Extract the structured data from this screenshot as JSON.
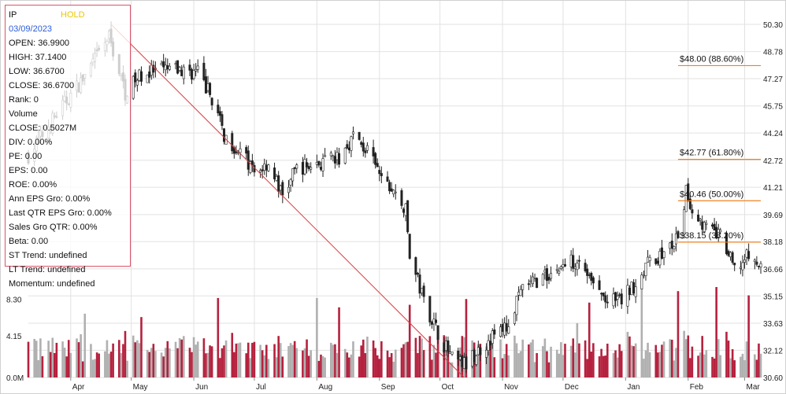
{
  "info_panel": {
    "ticker": "IP",
    "rating": "HOLD",
    "date": "03/09/2023",
    "lines": [
      "OPEN: 36.9900",
      "HIGH: 37.1400",
      "LOW: 36.6700",
      "CLOSE: 36.6700",
      "Rank: 0",
      "Volume",
      "CLOSE: 0.5027M",
      "DIV: 0.00%",
      "PE: 0.00",
      "EPS: 0.00",
      "ROE: 0.00%",
      "Ann EPS Gro: 0.00%",
      "Last QTR EPS Gro: 0.00%",
      "Sales Gro QTR: 0.00%",
      "Beta: 0.00",
      "ST Trend: undefined",
      "LT Trend: undefined",
      "Momentum: undefined"
    ]
  },
  "colors": {
    "up_candle": "#222222",
    "down_candle": "#222222",
    "volume_up": "#b0b0b0",
    "volume_down": "#b5213e",
    "trendline": "#e03b3b",
    "fib_line": "#f08020",
    "grid": "#e2e2e2"
  },
  "chart_data": {
    "type": "candlestick",
    "price_axis": {
      "ticks": [
        "50.30",
        "48.78",
        "47.27",
        "45.75",
        "44.24",
        "42.72",
        "41.21",
        "39.69",
        "38.18",
        "36.66",
        "35.15",
        "33.63",
        "32.12",
        "30.60"
      ],
      "ylim": [
        30.6,
        50.3
      ],
      "position": "right"
    },
    "volume_axis": {
      "ticks": [
        "8.30",
        "4.15",
        "0.0M"
      ],
      "ylim": [
        0,
        12.4
      ],
      "unit": "M"
    },
    "x_axis": {
      "month_labels": [
        "Apr",
        "May",
        "Jun",
        "Jul",
        "Aug",
        "Sep",
        "Oct",
        "Nov",
        "Dec",
        "Jan",
        "Feb",
        "Mar"
      ],
      "start_date": "2022-03-11",
      "end_date": "2023-03-09"
    },
    "grid": true,
    "fibonacci_levels": [
      {
        "label": "$48.00 (88.60%)",
        "price": 48.0
      },
      {
        "label": "$42.77 (61.80%)",
        "price": 42.77
      },
      {
        "label": "$40.46 (50.00%)",
        "price": 40.46
      },
      {
        "label": "$38.15 (38.20%)",
        "price": 38.15
      }
    ],
    "fibonacci_start_date": "2023-01-27",
    "trendline": {
      "from": {
        "date": "2022-04-21",
        "price": 50.3
      },
      "to": {
        "date": "2022-10-13",
        "price": 30.6
      }
    },
    "price_path": [
      [
        "2022-03-11",
        43.0
      ],
      [
        "2022-03-25",
        45.3
      ],
      [
        "2022-04-08",
        47.4
      ],
      [
        "2022-04-20",
        49.6
      ],
      [
        "2022-04-28",
        46.5
      ],
      [
        "2022-05-06",
        47.5
      ],
      [
        "2022-05-20",
        47.8
      ],
      [
        "2022-06-03",
        47.6
      ],
      [
        "2022-06-10",
        46.2
      ],
      [
        "2022-06-16",
        44.1
      ],
      [
        "2022-06-24",
        43.2
      ],
      [
        "2022-07-01",
        42.0
      ],
      [
        "2022-07-08",
        42.6
      ],
      [
        "2022-07-15",
        40.7
      ],
      [
        "2022-07-22",
        42.3
      ],
      [
        "2022-08-01",
        42.5
      ],
      [
        "2022-08-12",
        42.8
      ],
      [
        "2022-08-19",
        44.1
      ],
      [
        "2022-08-26",
        43.2
      ],
      [
        "2022-09-02",
        41.7
      ],
      [
        "2022-09-09",
        40.8
      ],
      [
        "2022-09-14",
        39.9
      ],
      [
        "2022-09-16",
        37.4
      ],
      [
        "2022-09-23",
        34.9
      ],
      [
        "2022-09-30",
        33.1
      ],
      [
        "2022-10-07",
        31.6
      ],
      [
        "2022-10-14",
        31.3
      ],
      [
        "2022-10-21",
        32.2
      ],
      [
        "2022-10-28",
        33.0
      ],
      [
        "2022-11-04",
        33.5
      ],
      [
        "2022-11-11",
        35.6
      ],
      [
        "2022-11-18",
        36.0
      ],
      [
        "2022-11-25",
        36.4
      ],
      [
        "2022-12-02",
        36.9
      ],
      [
        "2022-12-09",
        37.3
      ],
      [
        "2022-12-16",
        35.7
      ],
      [
        "2022-12-23",
        34.8
      ],
      [
        "2022-12-30",
        34.9
      ],
      [
        "2023-01-06",
        35.9
      ],
      [
        "2023-01-13",
        37.1
      ],
      [
        "2023-01-20",
        37.5
      ],
      [
        "2023-01-27",
        38.3
      ],
      [
        "2023-01-31",
        40.9
      ],
      [
        "2023-02-03",
        40.0
      ],
      [
        "2023-02-10",
        38.9
      ],
      [
        "2023-02-17",
        38.5
      ],
      [
        "2023-02-24",
        36.6
      ],
      [
        "2023-03-03",
        37.4
      ],
      [
        "2023-03-09",
        36.67
      ]
    ]
  }
}
